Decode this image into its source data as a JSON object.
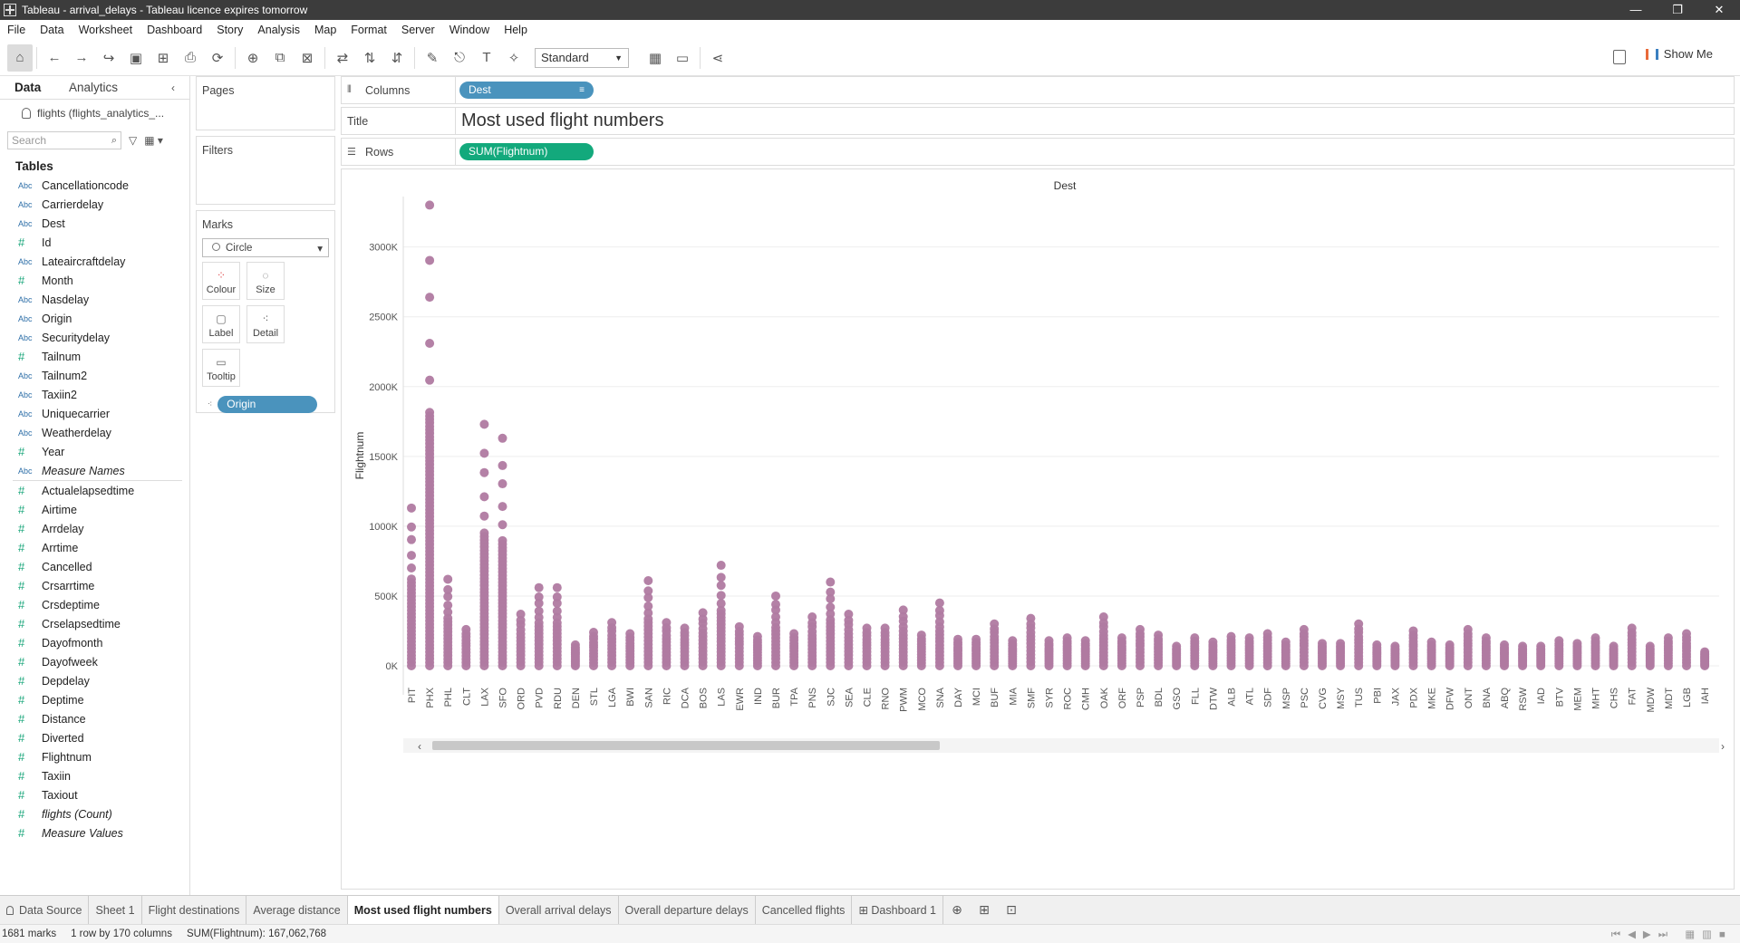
{
  "window": {
    "title": "Tableau - arrival_delays - Tableau licence expires tomorrow",
    "controls": [
      "—",
      "❐",
      "✕"
    ]
  },
  "menu": [
    "File",
    "Data",
    "Worksheet",
    "Dashboard",
    "Story",
    "Analysis",
    "Map",
    "Format",
    "Server",
    "Window",
    "Help"
  ],
  "toolbar": {
    "fit_select": "Standard",
    "show_me": "Show Me"
  },
  "left_pane": {
    "tab_data": "Data",
    "tab_analytics": "Analytics",
    "datasource": "flights (flights_analytics_...",
    "search_placeholder": "Search",
    "tables_heading": "Tables",
    "dimensions": [
      {
        "name": "Cancellationcode",
        "type": "Abc"
      },
      {
        "name": "Carrierdelay",
        "type": "Abc"
      },
      {
        "name": "Dest",
        "type": "Abc"
      },
      {
        "name": "Id",
        "type": "#"
      },
      {
        "name": "Lateaircraftdelay",
        "type": "Abc"
      },
      {
        "name": "Month",
        "type": "#"
      },
      {
        "name": "Nasdelay",
        "type": "Abc"
      },
      {
        "name": "Origin",
        "type": "Abc"
      },
      {
        "name": "Securitydelay",
        "type": "Abc"
      },
      {
        "name": "Tailnum",
        "type": "#"
      },
      {
        "name": "Tailnum2",
        "type": "Abc"
      },
      {
        "name": "Taxiin2",
        "type": "Abc"
      },
      {
        "name": "Uniquecarrier",
        "type": "Abc"
      },
      {
        "name": "Weatherdelay",
        "type": "Abc"
      },
      {
        "name": "Year",
        "type": "#"
      },
      {
        "name": "Measure Names",
        "type": "Abc",
        "italic": true
      }
    ],
    "measures": [
      {
        "name": "Actualelapsedtime",
        "type": "#"
      },
      {
        "name": "Airtime",
        "type": "#"
      },
      {
        "name": "Arrdelay",
        "type": "#"
      },
      {
        "name": "Arrtime",
        "type": "#"
      },
      {
        "name": "Cancelled",
        "type": "#"
      },
      {
        "name": "Crsarrtime",
        "type": "#"
      },
      {
        "name": "Crsdeptime",
        "type": "#"
      },
      {
        "name": "Crselapsedtime",
        "type": "#"
      },
      {
        "name": "Dayofmonth",
        "type": "#"
      },
      {
        "name": "Dayofweek",
        "type": "#"
      },
      {
        "name": "Depdelay",
        "type": "#"
      },
      {
        "name": "Deptime",
        "type": "#"
      },
      {
        "name": "Distance",
        "type": "#"
      },
      {
        "name": "Diverted",
        "type": "#"
      },
      {
        "name": "Flightnum",
        "type": "#"
      },
      {
        "name": "Taxiin",
        "type": "#"
      },
      {
        "name": "Taxiout",
        "type": "#"
      },
      {
        "name": "flights (Count)",
        "type": "#",
        "italic": true
      },
      {
        "name": "Measure Values",
        "type": "#",
        "italic": true
      }
    ]
  },
  "cards": {
    "pages": "Pages",
    "filters": "Filters",
    "marks": "Marks",
    "mark_type": "Circle",
    "mark_buttons": [
      "Colour",
      "Size",
      "Label",
      "Detail",
      "Tooltip"
    ],
    "detail_pill": "Origin"
  },
  "shelves": {
    "columns_label": "Columns",
    "columns_pill": "Dest",
    "title_label": "Title",
    "title_text": "Most used flight numbers",
    "rows_label": "Rows",
    "rows_pill": "SUM(Flightnum)"
  },
  "chart_data": {
    "type": "scatter",
    "title": "Dest",
    "ylabel": "Flightnum",
    "ylim": [
      0,
      3400000
    ],
    "yticks": [
      "0K",
      "500K",
      "1000K",
      "1500K",
      "2000K",
      "2500K",
      "3000K"
    ],
    "ytick_values": [
      0,
      500000,
      1000000,
      1500000,
      2000000,
      2500000,
      3000000
    ],
    "mark_color": "#b07aa1",
    "categories": [
      "PIT",
      "PHX",
      "PHL",
      "CLT",
      "LAX",
      "SFO",
      "ORD",
      "PVD",
      "RDU",
      "DEN",
      "STL",
      "LGA",
      "BWI",
      "SAN",
      "RIC",
      "DCA",
      "BOS",
      "LAS",
      "EWR",
      "IND",
      "BUR",
      "TPA",
      "PNS",
      "SJC",
      "SEA",
      "CLE",
      "RNO",
      "PWM",
      "MCO",
      "SNA",
      "DAY",
      "MCI",
      "BUF",
      "MIA",
      "SMF",
      "SYR",
      "ROC",
      "CMH",
      "OAK",
      "ORF",
      "PSP",
      "BDL",
      "GSO",
      "FLL",
      "DTW",
      "ALB",
      "ATL",
      "SDF",
      "MSP",
      "PSC",
      "CVG",
      "MSY",
      "TUS",
      "PBI",
      "JAX",
      "PDX",
      "MKE",
      "DFW",
      "ONT",
      "BNA",
      "ABQ",
      "RSW",
      "IAD",
      "BTV",
      "MEM",
      "MHT",
      "CHS",
      "FAT",
      "MDW",
      "MDT",
      "LGB",
      "IAH"
    ],
    "max_values": [
      1130000,
      3300000,
      620000,
      260000,
      1730000,
      1630000,
      370000,
      560000,
      560000,
      150000,
      240000,
      310000,
      230000,
      610000,
      310000,
      270000,
      380000,
      720000,
      280000,
      210000,
      500000,
      230000,
      350000,
      600000,
      370000,
      270000,
      270000,
      400000,
      220000,
      450000,
      190000,
      190000,
      300000,
      180000,
      340000,
      180000,
      200000,
      180000,
      350000,
      200000,
      260000,
      220000,
      140000,
      200000,
      170000,
      210000,
      200000,
      230000,
      170000,
      260000,
      160000,
      160000,
      300000,
      150000,
      140000,
      250000,
      170000,
      150000,
      260000,
      200000,
      150000,
      140000,
      140000,
      180000,
      160000,
      200000,
      140000,
      270000,
      140000,
      200000,
      230000,
      100000
    ],
    "grid": true
  },
  "sheet_tabs": [
    "Data Source",
    "Sheet 1",
    "Flight destinations",
    "Average distance",
    "Most used flight numbers",
    "Overall arrival delays",
    "Overall departure delays",
    "Cancelled flights",
    "Dashboard 1"
  ],
  "active_sheet": "Most used flight numbers",
  "status": {
    "marks": "1681 marks",
    "rows_cols": "1 row by 170 columns",
    "sum": "SUM(Flightnum): 167,062,768"
  }
}
